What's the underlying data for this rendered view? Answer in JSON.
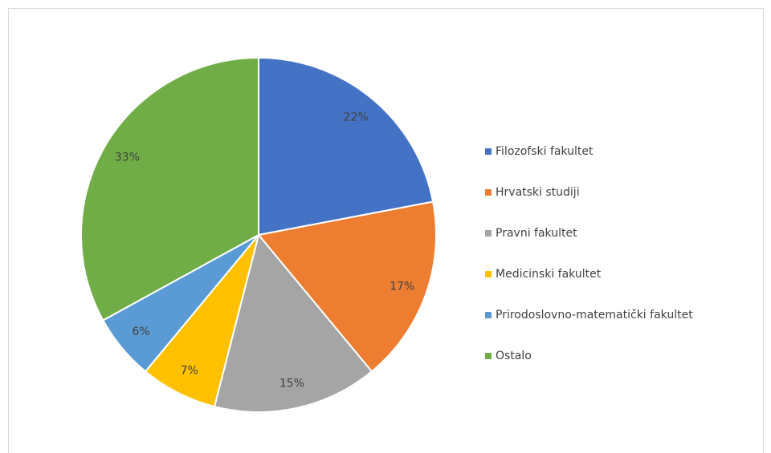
{
  "chart_data": {
    "type": "pie",
    "categories": [
      "Filozofski fakultet",
      "Hrvatski studiji",
      "Pravni fakultet",
      "Medicinski fakultet",
      "Prirodoslovno-matematički fakultet",
      "Ostalo"
    ],
    "values": [
      22,
      17,
      15,
      7,
      6,
      33
    ],
    "value_labels": [
      "22%",
      "17%",
      "15%",
      "7%",
      "6%",
      "33%"
    ],
    "colors": [
      "#4472c4",
      "#ed7d31",
      "#a5a5a5",
      "#ffc000",
      "#5b9bd5",
      "#70ad47"
    ],
    "legend": "right"
  }
}
